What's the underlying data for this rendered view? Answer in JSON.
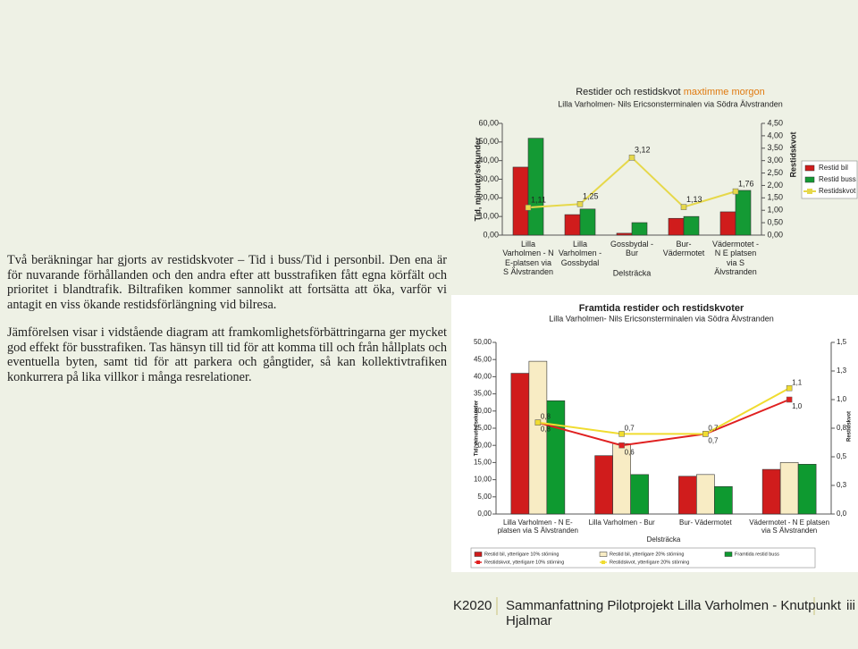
{
  "body": {
    "paragraphs": [
      "Två beräkningar har gjorts av restidskvoter – Tid i buss/Tid i personbil. Den ena är för nuvarande förhållanden och den andra efter att busstrafiken fått egna körfält och prioritet i blandtrafik. Biltrafiken kommer sannolikt att fortsätta att öka, varför vi antagit en viss ökande restidsförlängning vid bilresa.",
      "Jämförelsen visar i vidstående diagram att framkomlighetsförbättringarna ger mycket god effekt för busstrafiken. Tas hänsyn till tid för att komma till och från hållplats och eventuella byten, samt tid för att parkera och gångtider, så kan kollektivtrafiken konkurrera på lika villkor i många resrelationer."
    ]
  },
  "chart_data": [
    {
      "type": "bar",
      "title": "Restider och restidskvot",
      "title_highlight": "maxtimme morgon",
      "subtitle": "Lilla Varholmen- Nils Ericsonsterminalen via Södra Älvstranden",
      "x_label": "Delsträcka",
      "y_label": "Tid, minuter/sekunder",
      "y2_label": "Restidskvot",
      "legend": "right",
      "categories": [
        "Lilla Varholmen - N E-platsen via S Älvstranden",
        "Lilla Varholmen - Gossbydal",
        "Gossbydal - Bur",
        "Bur- Vädermotet",
        "Vädermotet - N E platsen via S Älvstranden"
      ],
      "series": [
        {
          "name": "Restid bil",
          "color": "#d01c1c",
          "values": [
            36.5,
            11,
            1,
            9,
            12.5
          ]
        },
        {
          "name": "Restid buss",
          "color": "#149a34",
          "values": [
            52,
            14,
            6.7,
            10,
            24
          ]
        },
        {
          "name": "Restidskvot",
          "color": "#e6d84a",
          "axis": "y2",
          "values": [
            1.11,
            1.25,
            3.12,
            1.13,
            1.76
          ],
          "value_labels": [
            "1,11",
            "1,25",
            "3,12",
            "1,13",
            "1,76"
          ]
        }
      ],
      "ylim": [
        0,
        60
      ],
      "yticks": [
        {
          "value": 0,
          "label": "0,00"
        },
        {
          "value": 10,
          "label": "10,00"
        },
        {
          "value": 20,
          "label": "20,00"
        },
        {
          "value": 30,
          "label": "30,00"
        },
        {
          "value": 40,
          "label": "40,00"
        },
        {
          "value": 50,
          "label": "50,00"
        },
        {
          "value": 60,
          "label": "60,00"
        }
      ],
      "y2lim": [
        0,
        4.5
      ],
      "y2ticks": [
        {
          "value": 0,
          "label": "0,00"
        },
        {
          "value": 0.5,
          "label": "0,50"
        },
        {
          "value": 1,
          "label": "1,00"
        },
        {
          "value": 1.5,
          "label": "1,50"
        },
        {
          "value": 2,
          "label": "2,00"
        },
        {
          "value": 2.5,
          "label": "2,50"
        },
        {
          "value": 3,
          "label": "3,00"
        },
        {
          "value": 3.5,
          "label": "3,50"
        },
        {
          "value": 4,
          "label": "4,00"
        },
        {
          "value": 4.5,
          "label": "4,50"
        }
      ]
    },
    {
      "type": "bar",
      "title": "Framtida restider och restidskvoter",
      "subtitle": "Lilla Varholmen- Nils Ericsonsterminalen via Södra Älvstranden",
      "x_label": "Delsträcka",
      "y_label": "Tid, minuter/sekunder",
      "y2_label": "Restidskvot",
      "legend": "bottom",
      "categories": [
        "Lilla Varholmen - N E-platsen via S Älvstranden",
        "Lilla Varholmen - Bur",
        "Bur- Vädermotet",
        "Vädermotet - N E platsen via S Älvstranden"
      ],
      "series": [
        {
          "name": "Restid bil, ytterligare 10% störning",
          "color": "#d01c1c",
          "values": [
            41,
            17,
            11,
            13
          ]
        },
        {
          "name": "Restid bil, ytterligare 20% störning",
          "color": "#f8ecc4",
          "values": [
            44.5,
            20.5,
            11.5,
            15
          ]
        },
        {
          "name": "Framtida restid buss",
          "color": "#0e9a30",
          "values": [
            33,
            11.5,
            8,
            14.5
          ]
        },
        {
          "name": "Restidskvot, ytterligare 10% störning",
          "color": "#e02020",
          "axis": "y2",
          "values": [
            0.8,
            0.6,
            0.7,
            1.0
          ],
          "value_labels": [
            "0,8",
            "0,6",
            "0,7",
            "1,0"
          ]
        },
        {
          "name": "Restidskvot, ytterligare 20% störning",
          "color": "#f0dc30",
          "axis": "y2",
          "values": [
            0.8,
            0.7,
            0.7,
            1.1
          ],
          "value_labels": [
            "0,8",
            "0,7",
            "0,7",
            "1,1"
          ]
        }
      ],
      "ylim": [
        0,
        50
      ],
      "yticks": [
        {
          "value": 0,
          "label": "0,00"
        },
        {
          "value": 5,
          "label": "5,00"
        },
        {
          "value": 10,
          "label": "10,00"
        },
        {
          "value": 15,
          "label": "15,00"
        },
        {
          "value": 20,
          "label": "20,00"
        },
        {
          "value": 25,
          "label": "25,00"
        },
        {
          "value": 30,
          "label": "30,00"
        },
        {
          "value": 35,
          "label": "35,00"
        },
        {
          "value": 40,
          "label": "40,00"
        },
        {
          "value": 45,
          "label": "45,00"
        },
        {
          "value": 50,
          "label": "50,00"
        }
      ],
      "y2lim": [
        0,
        1.5
      ],
      "y2ticks": [
        {
          "value": 0,
          "label": "0,0"
        },
        {
          "value": 0.25,
          "label": "0,3"
        },
        {
          "value": 0.5,
          "label": "0,5"
        },
        {
          "value": 0.75,
          "label": "0,8"
        },
        {
          "value": 1,
          "label": "1,0"
        },
        {
          "value": 1.25,
          "label": "1,3"
        },
        {
          "value": 1.5,
          "label": "1,5"
        }
      ]
    }
  ],
  "footer": {
    "code": "K2020",
    "title": "Sammanfattning Pilotprojekt Lilla Varholmen - Knutpunkt Hjalmar",
    "page": "iii"
  }
}
